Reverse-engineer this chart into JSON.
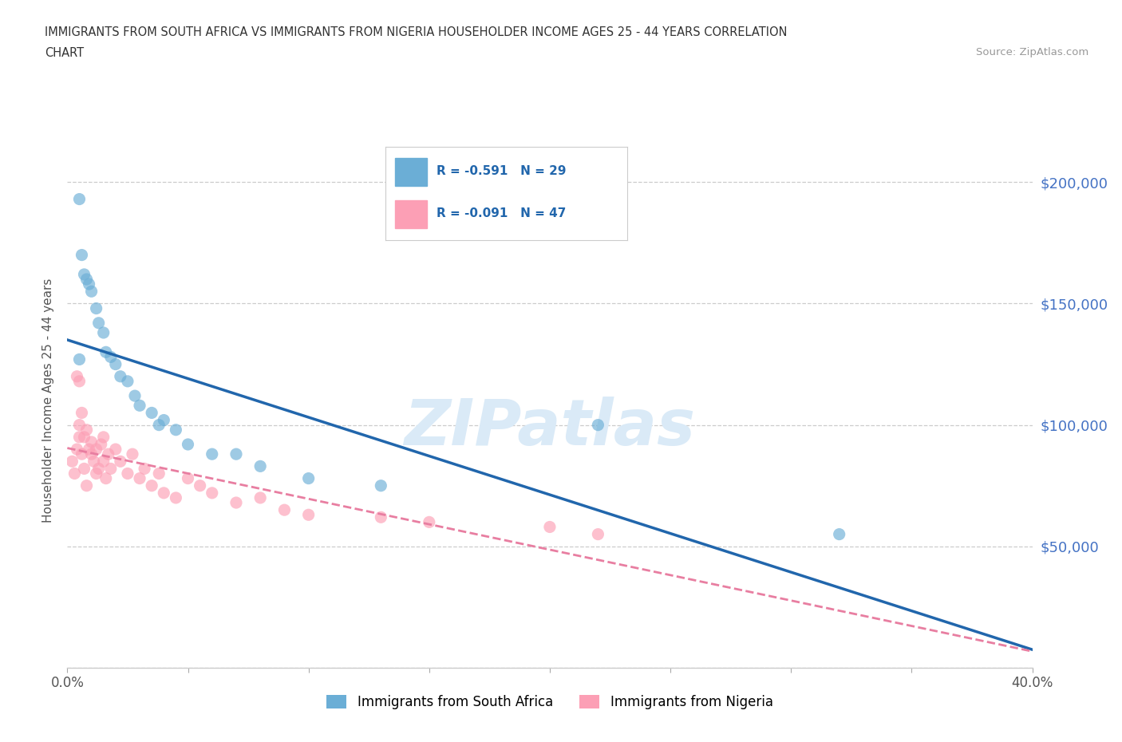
{
  "title_line1": "IMMIGRANTS FROM SOUTH AFRICA VS IMMIGRANTS FROM NIGERIA HOUSEHOLDER INCOME AGES 25 - 44 YEARS CORRELATION",
  "title_line2": "CHART",
  "source": "Source: ZipAtlas.com",
  "ylabel": "Householder Income Ages 25 - 44 years",
  "xlim": [
    0.0,
    0.4
  ],
  "ylim": [
    0,
    220000
  ],
  "yticks": [
    0,
    50000,
    100000,
    150000,
    200000
  ],
  "xticks": [
    0.0,
    0.05,
    0.1,
    0.15,
    0.2,
    0.25,
    0.3,
    0.35,
    0.4
  ],
  "south_africa_color": "#6baed6",
  "nigeria_color": "#fc9fb5",
  "south_africa_line_color": "#2166ac",
  "nigeria_line_color": "#e87ea1",
  "legend_r_sa": "R = -0.591",
  "legend_n_sa": "N = 29",
  "legend_r_ng": "R = -0.091",
  "legend_n_ng": "N = 47",
  "legend_label_sa": "Immigrants from South Africa",
  "legend_label_ng": "Immigrants from Nigeria",
  "watermark": "ZIPatlas",
  "south_africa_x": [
    0.005,
    0.006,
    0.007,
    0.008,
    0.009,
    0.01,
    0.012,
    0.013,
    0.015,
    0.016,
    0.018,
    0.02,
    0.022,
    0.025,
    0.028,
    0.03,
    0.035,
    0.038,
    0.04,
    0.045,
    0.05,
    0.06,
    0.07,
    0.08,
    0.1,
    0.13,
    0.22,
    0.32,
    0.005
  ],
  "south_africa_y": [
    193000,
    170000,
    162000,
    160000,
    158000,
    155000,
    148000,
    142000,
    138000,
    130000,
    128000,
    125000,
    120000,
    118000,
    112000,
    108000,
    105000,
    100000,
    102000,
    98000,
    92000,
    88000,
    88000,
    83000,
    78000,
    75000,
    100000,
    55000,
    127000
  ],
  "nigeria_x": [
    0.002,
    0.003,
    0.004,
    0.005,
    0.005,
    0.006,
    0.006,
    0.007,
    0.007,
    0.008,
    0.008,
    0.009,
    0.01,
    0.01,
    0.011,
    0.012,
    0.012,
    0.013,
    0.014,
    0.015,
    0.015,
    0.016,
    0.017,
    0.018,
    0.02,
    0.022,
    0.025,
    0.027,
    0.03,
    0.032,
    0.035,
    0.038,
    0.04,
    0.045,
    0.05,
    0.055,
    0.06,
    0.07,
    0.08,
    0.09,
    0.1,
    0.13,
    0.15,
    0.2,
    0.22,
    0.005,
    0.004
  ],
  "nigeria_y": [
    85000,
    80000,
    90000,
    95000,
    100000,
    105000,
    88000,
    95000,
    82000,
    98000,
    75000,
    90000,
    88000,
    93000,
    85000,
    90000,
    80000,
    82000,
    92000,
    85000,
    95000,
    78000,
    88000,
    82000,
    90000,
    85000,
    80000,
    88000,
    78000,
    82000,
    75000,
    80000,
    72000,
    70000,
    78000,
    75000,
    72000,
    68000,
    70000,
    65000,
    63000,
    62000,
    60000,
    58000,
    55000,
    118000,
    120000
  ]
}
